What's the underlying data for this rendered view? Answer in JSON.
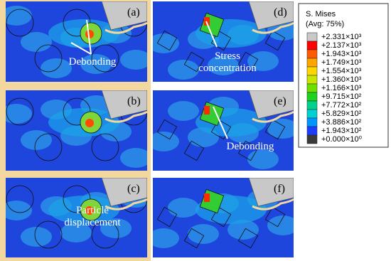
{
  "panels": [
    {
      "label": "(a)",
      "annotation": "Debonding"
    },
    {
      "label": "(b)"
    },
    {
      "label": "(c)",
      "annotation": "Particle displacement"
    },
    {
      "label": "(d)",
      "annotation": "Stress concentration"
    },
    {
      "label": "(e)",
      "annotation": "Debonding"
    },
    {
      "label": "(f)"
    }
  ],
  "legend": {
    "title": "S. Mises",
    "subtitle": "(Avg: 75%)",
    "entries": [
      {
        "label": "+2.331×10³",
        "color": "#c8c8c8"
      },
      {
        "label": "+2.137×10³",
        "color": "#ff0000"
      },
      {
        "label": "+1.943×10³",
        "color": "#ff5a00"
      },
      {
        "label": "+1.749×10³",
        "color": "#ffa500"
      },
      {
        "label": "+1.554×10³",
        "color": "#ffd700"
      },
      {
        "label": "+1.360×10³",
        "color": "#c8e600"
      },
      {
        "label": "+1.166×10³",
        "color": "#6ee000"
      },
      {
        "label": "+9.715×10²",
        "color": "#1ed21e"
      },
      {
        "label": "+7.772×10²",
        "color": "#00d28c"
      },
      {
        "label": "+5.829×10²",
        "color": "#00d2d2"
      },
      {
        "label": "+3.886×10²",
        "color": "#0096ff"
      },
      {
        "label": "+1.943×10²",
        "color": "#1e3cff"
      },
      {
        "label": "+0.000×10⁰",
        "color": "#3a3a3a"
      }
    ]
  }
}
